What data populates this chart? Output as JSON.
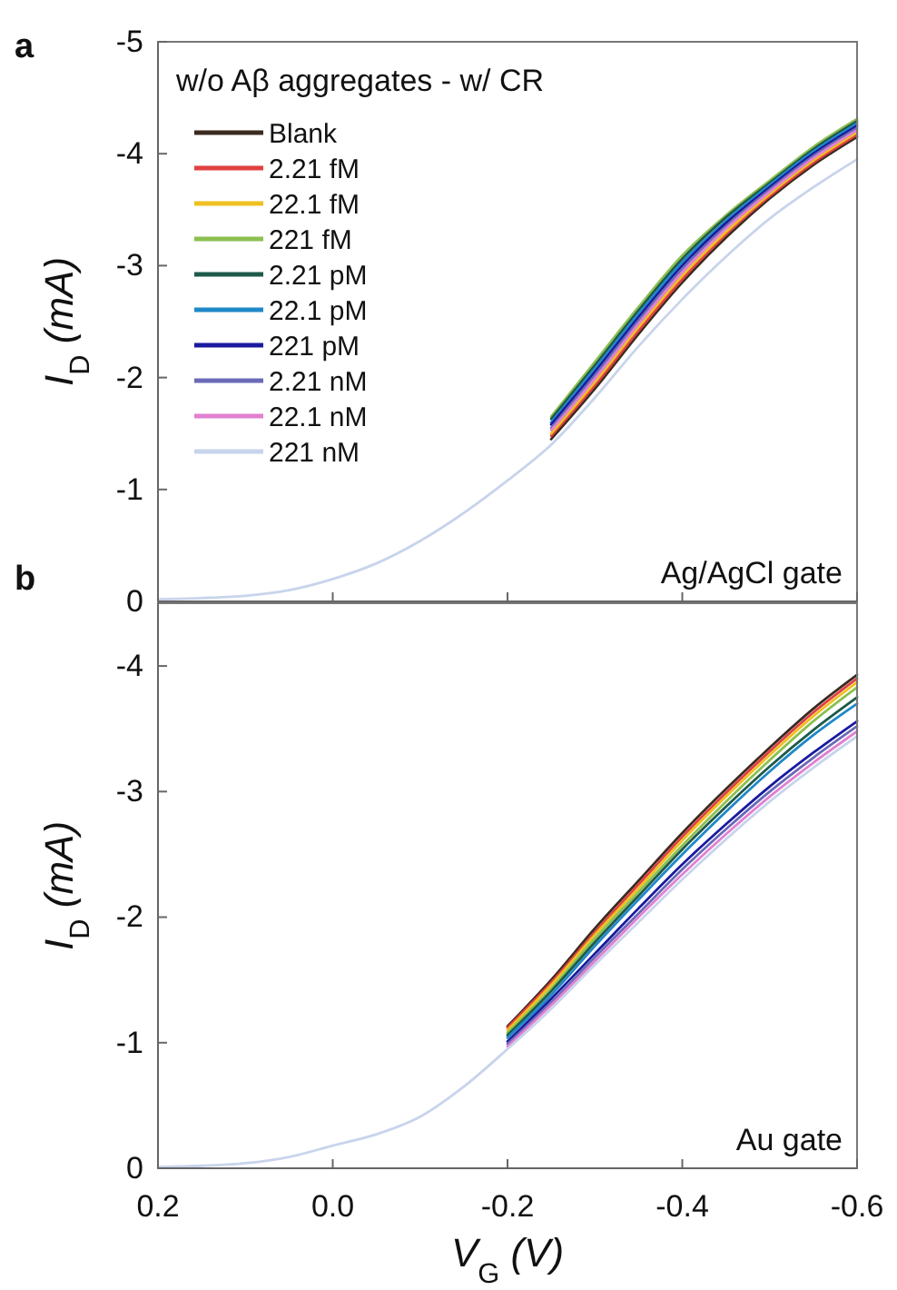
{
  "chart_data": [
    {
      "type": "line",
      "title": "a",
      "annotations": [
        "w/o Aβ aggregates  - w/ CR",
        "Ag/AgCl gate"
      ],
      "ylabel": "I$_{D}$ (mA)",
      "x": [
        0.2,
        0.15,
        0.1,
        0.05,
        0.0,
        -0.05,
        -0.1,
        -0.15,
        -0.2,
        -0.25,
        -0.3,
        -0.35,
        -0.4,
        -0.45,
        -0.5,
        -0.55,
        -0.6
      ],
      "xlim": [
        0.2,
        -0.6
      ],
      "xticks": [
        {
          "value": 0.2,
          "label": null
        },
        {
          "value": 0,
          "label": null
        },
        {
          "value": -0.2,
          "label": null
        },
        {
          "value": -0.4,
          "label": null
        },
        {
          "value": -0.6,
          "label": null
        }
      ],
      "ylim": [
        0,
        -5
      ],
      "yticks": [
        0,
        -1,
        -2,
        -3,
        -4,
        -5
      ],
      "tick_labels": "y",
      "legend": "top left",
      "grid": false,
      "line_style": "solid",
      "marker": "none",
      "series": [
        {
          "name": "Blank",
          "color": "#3b2a20",
          "values": [
            null,
            null,
            null,
            null,
            null,
            null,
            null,
            null,
            null,
            -1.45,
            -1.9,
            -2.39,
            -2.85,
            -3.25,
            -3.6,
            -3.9,
            -4.15
          ]
        },
        {
          "name": "2.21 fM",
          "color": "#e04040",
          "values": [
            null,
            null,
            null,
            null,
            null,
            null,
            null,
            null,
            null,
            -1.48,
            -1.93,
            -2.42,
            -2.88,
            -3.28,
            -3.62,
            -3.92,
            -4.17
          ]
        },
        {
          "name": "22.1 fM",
          "color": "#f0c020",
          "values": [
            null,
            null,
            null,
            null,
            null,
            null,
            null,
            null,
            null,
            -1.5,
            -1.96,
            -2.45,
            -2.91,
            -3.3,
            -3.64,
            -3.94,
            -4.19
          ]
        },
        {
          "name": "221 fM",
          "color": "#8cc050",
          "values": [
            null,
            null,
            null,
            null,
            null,
            null,
            null,
            null,
            null,
            -1.65,
            -2.14,
            -2.63,
            -3.09,
            -3.45,
            -3.76,
            -4.06,
            -4.31
          ]
        },
        {
          "name": "2.21 pM",
          "color": "#1d5a4a",
          "values": [
            null,
            null,
            null,
            null,
            null,
            null,
            null,
            null,
            null,
            -1.63,
            -2.11,
            -2.6,
            -3.06,
            -3.43,
            -3.74,
            -4.04,
            -4.29
          ]
        },
        {
          "name": "22.1 pM",
          "color": "#1f88c8",
          "values": [
            null,
            null,
            null,
            null,
            null,
            null,
            null,
            null,
            null,
            -1.6,
            -2.08,
            -2.57,
            -3.03,
            -3.4,
            -3.72,
            -4.02,
            -4.27
          ]
        },
        {
          "name": "221 pM",
          "color": "#1a1aa0",
          "values": [
            null,
            null,
            null,
            null,
            null,
            null,
            null,
            null,
            null,
            -1.58,
            -2.05,
            -2.54,
            -3.0,
            -3.38,
            -3.7,
            -4.0,
            -4.25
          ]
        },
        {
          "name": "2.21 nM",
          "color": "#6a6ab8",
          "values": [
            null,
            null,
            null,
            null,
            null,
            null,
            null,
            null,
            null,
            -1.55,
            -2.02,
            -2.51,
            -2.97,
            -3.35,
            -3.68,
            -3.98,
            -4.23
          ]
        },
        {
          "name": "22.1 nM",
          "color": "#e080d0",
          "values": [
            null,
            null,
            null,
            null,
            null,
            null,
            null,
            null,
            null,
            -1.53,
            -1.99,
            -2.48,
            -2.94,
            -3.33,
            -3.66,
            -3.96,
            -4.21
          ]
        },
        {
          "name": "221 nM",
          "color": "#c8d4ec",
          "values": [
            -0.02,
            -0.03,
            -0.05,
            -0.1,
            -0.2,
            -0.34,
            -0.54,
            -0.79,
            -1.08,
            -1.4,
            -1.82,
            -2.28,
            -2.7,
            -3.08,
            -3.42,
            -3.7,
            -3.95
          ]
        }
      ]
    },
    {
      "type": "line",
      "title": "b",
      "annotations": [
        "Au gate"
      ],
      "ylabel": "I$_{D}$ (mA)",
      "xlabel": "V$_{G}$ (V)",
      "x": [
        0.2,
        0.15,
        0.1,
        0.05,
        0.0,
        -0.05,
        -0.1,
        -0.15,
        -0.2,
        -0.25,
        -0.3,
        -0.35,
        -0.4,
        -0.45,
        -0.5,
        -0.55,
        -0.6
      ],
      "xlim": [
        0.2,
        -0.6
      ],
      "xticks": [
        {
          "value": 0.2,
          "label": "0.2"
        },
        {
          "value": 0,
          "label": "0.0"
        },
        {
          "value": -0.2,
          "label": "-0.2"
        },
        {
          "value": -0.4,
          "label": "-0.4"
        },
        {
          "value": -0.6,
          "label": "-0.6"
        }
      ],
      "ylim": [
        0,
        -4.5
      ],
      "yticks": [
        0,
        -1,
        -2,
        -3,
        -4
      ],
      "legend": false,
      "grid": false,
      "line_style": "solid",
      "marker": "none",
      "series": [
        {
          "color": "#3b2a20",
          "values": [
            null,
            null,
            null,
            null,
            null,
            null,
            null,
            null,
            -1.13,
            -1.5,
            -1.91,
            -2.29,
            -2.67,
            -3.02,
            -3.35,
            -3.66,
            -3.93
          ]
        },
        {
          "color": "#e04040",
          "values": [
            null,
            null,
            null,
            null,
            null,
            null,
            null,
            null,
            -1.12,
            -1.48,
            -1.88,
            -2.26,
            -2.64,
            -2.99,
            -3.32,
            -3.63,
            -3.9
          ]
        },
        {
          "color": "#f0c020",
          "values": [
            null,
            null,
            null,
            null,
            null,
            null,
            null,
            null,
            -1.1,
            -1.46,
            -1.86,
            -2.23,
            -2.61,
            -2.96,
            -3.29,
            -3.6,
            -3.87
          ]
        },
        {
          "color": "#8cc050",
          "values": [
            null,
            null,
            null,
            null,
            null,
            null,
            null,
            null,
            -1.08,
            -1.43,
            -1.83,
            -2.2,
            -2.57,
            -2.92,
            -3.25,
            -3.56,
            -3.83
          ]
        },
        {
          "color": "#1d5a4a",
          "values": [
            null,
            null,
            null,
            null,
            null,
            null,
            null,
            null,
            -1.06,
            -1.41,
            -1.8,
            -2.17,
            -2.54,
            -2.88,
            -3.2,
            -3.49,
            -3.75
          ]
        },
        {
          "color": "#1f88c8",
          "values": [
            null,
            null,
            null,
            null,
            null,
            null,
            null,
            null,
            -1.04,
            -1.38,
            -1.77,
            -2.14,
            -2.5,
            -2.84,
            -3.16,
            -3.45,
            -3.7
          ]
        },
        {
          "color": "#1a1aa0",
          "values": [
            null,
            null,
            null,
            null,
            null,
            null,
            null,
            null,
            -1.01,
            -1.35,
            -1.71,
            -2.07,
            -2.42,
            -2.74,
            -3.04,
            -3.31,
            -3.56
          ]
        },
        {
          "color": "#6a6ab8",
          "values": [
            null,
            null,
            null,
            null,
            null,
            null,
            null,
            null,
            -0.99,
            -1.32,
            -1.68,
            -2.03,
            -2.38,
            -2.7,
            -3.0,
            -3.27,
            -3.52
          ]
        },
        {
          "color": "#e080d0",
          "values": [
            null,
            null,
            null,
            null,
            null,
            null,
            null,
            null,
            -0.97,
            -1.3,
            -1.65,
            -2.0,
            -2.34,
            -2.66,
            -2.96,
            -3.23,
            -3.48
          ]
        },
        {
          "color": "#c8d4ec",
          "values": [
            -0.01,
            -0.02,
            -0.04,
            -0.09,
            -0.18,
            -0.27,
            -0.41,
            -0.65,
            -0.95,
            -1.27,
            -1.62,
            -1.96,
            -2.3,
            -2.62,
            -2.92,
            -3.19,
            -3.44
          ]
        }
      ]
    }
  ]
}
